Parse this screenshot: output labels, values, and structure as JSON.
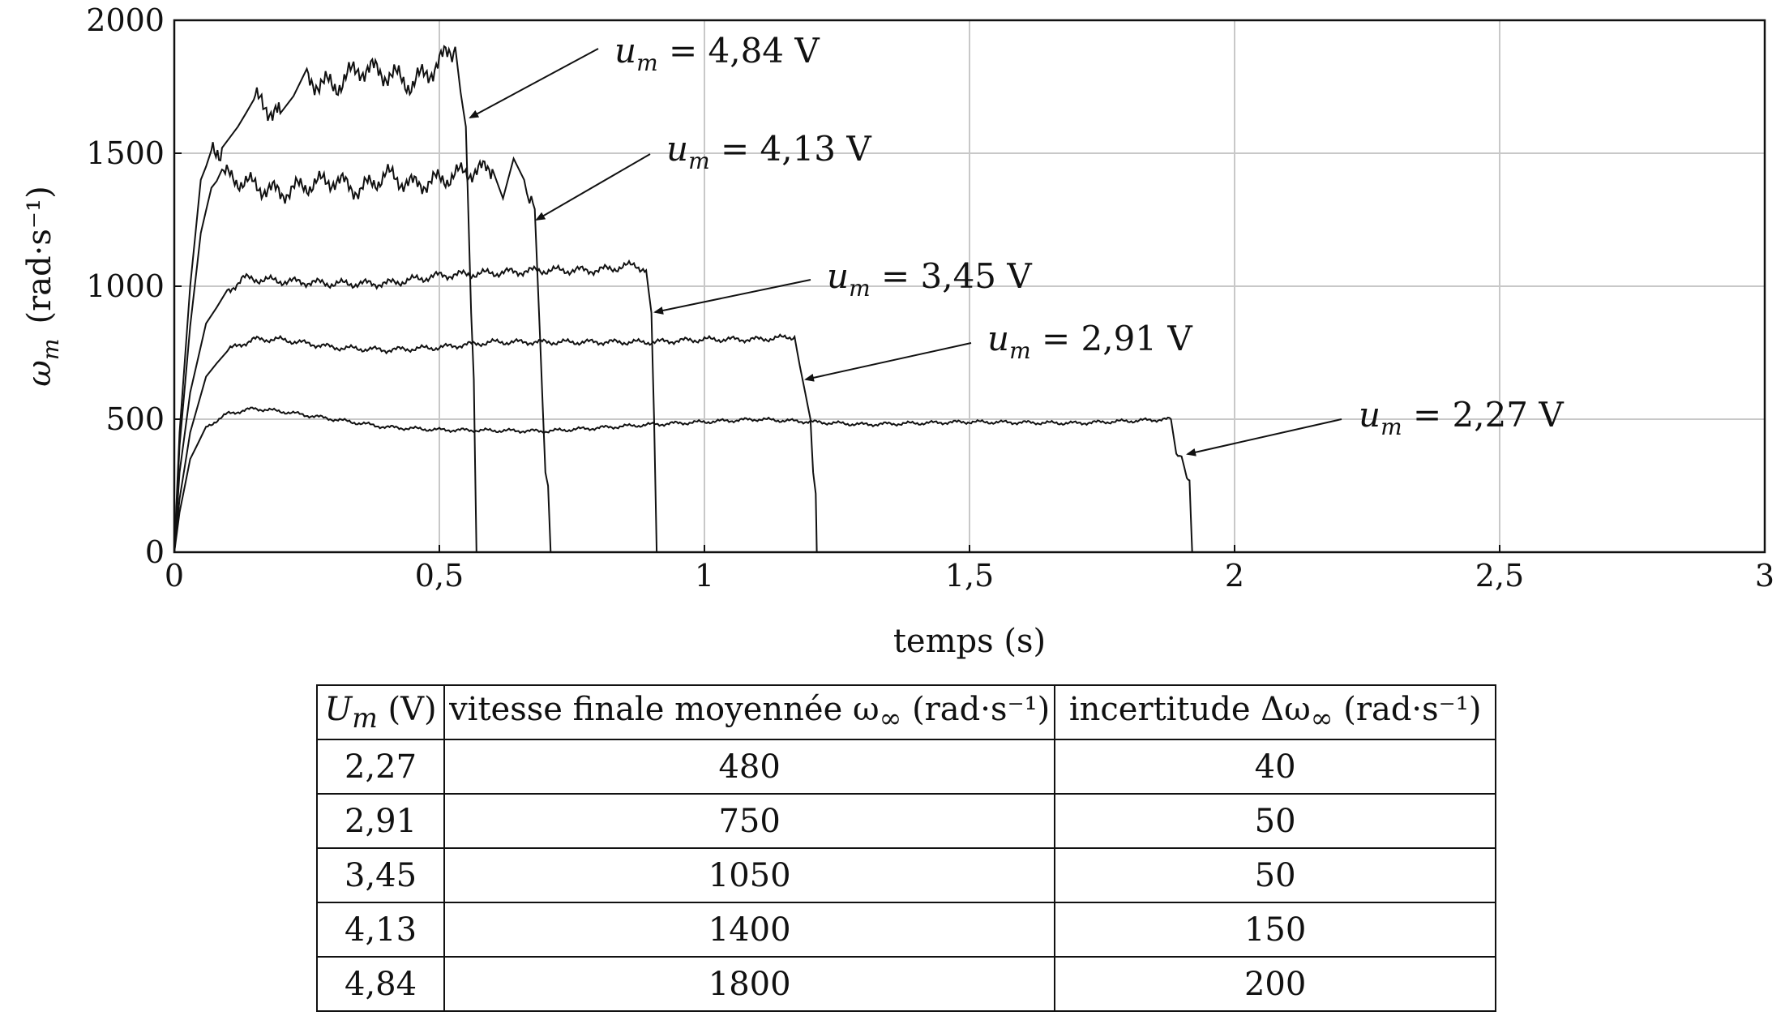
{
  "chart_data": {
    "type": "line",
    "xlabel": "temps (s)",
    "ylabel": "ω_m (rad·s⁻¹)",
    "ylabel_parts": {
      "symbol": "ω",
      "subscript": "m",
      "unit": "(rad·s⁻¹)"
    },
    "xlim": [
      0,
      3
    ],
    "ylim": [
      0,
      2000
    ],
    "grid": true,
    "x_ticks": [
      0,
      0.5,
      1,
      1.5,
      2,
      2.5,
      3
    ],
    "x_tick_labels": [
      "0",
      "0,5",
      "1",
      "1,5",
      "2",
      "2,5",
      "3"
    ],
    "y_ticks": [
      0,
      500,
      1000,
      1500,
      2000
    ],
    "y_tick_labels": [
      "0",
      "500",
      "1000",
      "1500",
      "2000"
    ],
    "series": [
      {
        "name": "u_m = 2,27 V",
        "voltage": "2,27",
        "points": [
          [
            0,
            0
          ],
          [
            0.01,
            150
          ],
          [
            0.03,
            350
          ],
          [
            0.06,
            470
          ],
          [
            0.1,
            520
          ],
          [
            0.15,
            540
          ],
          [
            0.2,
            530
          ],
          [
            0.3,
            500
          ],
          [
            0.4,
            470
          ],
          [
            0.5,
            460
          ],
          [
            0.7,
            455
          ],
          [
            0.9,
            480
          ],
          [
            1.1,
            500
          ],
          [
            1.3,
            480
          ],
          [
            1.5,
            490
          ],
          [
            1.7,
            485
          ],
          [
            1.88,
            500
          ],
          [
            1.89,
            370
          ],
          [
            1.9,
            360
          ],
          [
            1.91,
            280
          ],
          [
            1.915,
            270
          ],
          [
            1.92,
            0
          ]
        ]
      },
      {
        "name": "u_m = 2,91 V",
        "voltage": "2,91",
        "points": [
          [
            0,
            0
          ],
          [
            0.01,
            200
          ],
          [
            0.03,
            450
          ],
          [
            0.06,
            660
          ],
          [
            0.1,
            760
          ],
          [
            0.15,
            800
          ],
          [
            0.2,
            800
          ],
          [
            0.3,
            770
          ],
          [
            0.4,
            760
          ],
          [
            0.5,
            770
          ],
          [
            0.6,
            790
          ],
          [
            0.7,
            790
          ],
          [
            0.8,
            790
          ],
          [
            0.9,
            790
          ],
          [
            1.0,
            800
          ],
          [
            1.1,
            800
          ],
          [
            1.17,
            810
          ],
          [
            1.18,
            700
          ],
          [
            1.19,
            600
          ],
          [
            1.2,
            500
          ],
          [
            1.205,
            300
          ],
          [
            1.21,
            220
          ],
          [
            1.212,
            0
          ]
        ]
      },
      {
        "name": "u_m = 3,45 V",
        "voltage": "3,45",
        "points": [
          [
            0,
            0
          ],
          [
            0.01,
            300
          ],
          [
            0.03,
            600
          ],
          [
            0.06,
            860
          ],
          [
            0.1,
            980
          ],
          [
            0.13,
            1030
          ],
          [
            0.2,
            1020
          ],
          [
            0.3,
            1010
          ],
          [
            0.4,
            1010
          ],
          [
            0.5,
            1040
          ],
          [
            0.6,
            1050
          ],
          [
            0.7,
            1060
          ],
          [
            0.8,
            1060
          ],
          [
            0.87,
            1080
          ],
          [
            0.89,
            1060
          ],
          [
            0.9,
            900
          ],
          [
            0.905,
            500
          ],
          [
            0.91,
            0
          ]
        ]
      },
      {
        "name": "u_m = 4,13 V",
        "voltage": "4,13",
        "points": [
          [
            0,
            0
          ],
          [
            0.01,
            400
          ],
          [
            0.03,
            850
          ],
          [
            0.05,
            1200
          ],
          [
            0.07,
            1370
          ],
          [
            0.09,
            1420
          ],
          [
            0.15,
            1380
          ],
          [
            0.2,
            1350
          ],
          [
            0.25,
            1380
          ],
          [
            0.3,
            1400
          ],
          [
            0.35,
            1360
          ],
          [
            0.4,
            1420
          ],
          [
            0.45,
            1380
          ],
          [
            0.5,
            1400
          ],
          [
            0.55,
            1430
          ],
          [
            0.6,
            1440
          ],
          [
            0.62,
            1330
          ],
          [
            0.64,
            1480
          ],
          [
            0.66,
            1400
          ],
          [
            0.67,
            1300
          ],
          [
            0.68,
            1290
          ],
          [
            0.69,
            800
          ],
          [
            0.7,
            300
          ],
          [
            0.705,
            250
          ],
          [
            0.71,
            0
          ]
        ]
      },
      {
        "name": "u_m = 4,84 V",
        "voltage": "4,84",
        "points": [
          [
            0,
            0
          ],
          [
            0.01,
            450
          ],
          [
            0.03,
            1000
          ],
          [
            0.05,
            1400
          ],
          [
            0.07,
            1500
          ],
          [
            0.09,
            1520
          ],
          [
            0.12,
            1600
          ],
          [
            0.15,
            1700
          ],
          [
            0.2,
            1650
          ],
          [
            0.25,
            1780
          ],
          [
            0.3,
            1750
          ],
          [
            0.35,
            1820
          ],
          [
            0.4,
            1800
          ],
          [
            0.45,
            1760
          ],
          [
            0.5,
            1840
          ],
          [
            0.53,
            1900
          ],
          [
            0.54,
            1730
          ],
          [
            0.55,
            1600
          ],
          [
            0.56,
            900
          ],
          [
            0.565,
            650
          ],
          [
            0.57,
            0
          ]
        ]
      }
    ],
    "annotations": [
      {
        "text": "u_m = 4,84 V",
        "var": "u",
        "sub": "m",
        "rest": " = 4,84 V"
      },
      {
        "text": "u_m = 4,13 V",
        "var": "u",
        "sub": "m",
        "rest": " = 4,13 V"
      },
      {
        "text": "u_m = 3,45 V",
        "var": "u",
        "sub": "m",
        "rest": " = 3,45 V"
      },
      {
        "text": "u_m = 2,91 V",
        "var": "u",
        "sub": "m",
        "rest": " = 2,91 V"
      },
      {
        "text": "u_m = 2,27 V",
        "var": "u",
        "sub": "m",
        "rest": " = 2,27 V"
      }
    ]
  },
  "table": {
    "headers": [
      {
        "pre": "U",
        "sub": "m",
        "post": " (V)"
      },
      {
        "pre": "vitesse finale moyennée ω",
        "sub": "∞",
        "post": " (rad·s⁻¹)"
      },
      {
        "pre": "incertitude Δω",
        "sub": "∞",
        "post": " (rad·s⁻¹)"
      }
    ],
    "rows": [
      [
        "2,27",
        "480",
        "40"
      ],
      [
        "2,91",
        "750",
        "50"
      ],
      [
        "3,45",
        "1050",
        "50"
      ],
      [
        "4,13",
        "1400",
        "150"
      ],
      [
        "4,84",
        "1800",
        "200"
      ]
    ]
  }
}
